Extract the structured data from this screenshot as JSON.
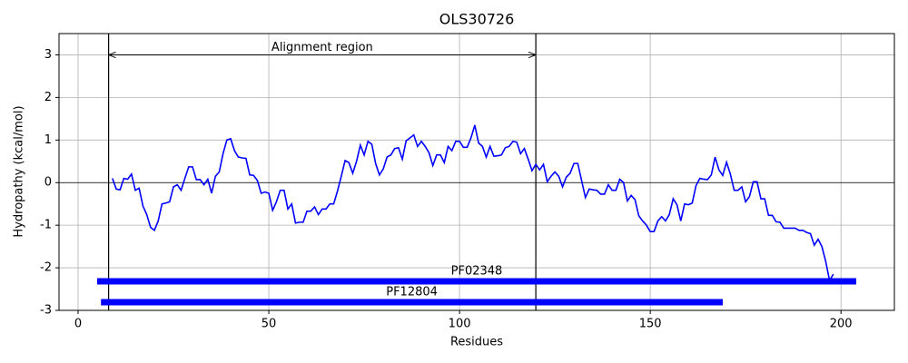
{
  "chart_data": {
    "type": "line",
    "title": "OLS30726",
    "xlabel": "Residues",
    "ylabel": "Hydropathy (kcal/mol)",
    "x": [
      9,
      10,
      11,
      12,
      13,
      14,
      15,
      16,
      17,
      18,
      19,
      20,
      21,
      22,
      23,
      24,
      25,
      26,
      27,
      28,
      29,
      30,
      31,
      32,
      33,
      34,
      35,
      36,
      37,
      38,
      39,
      40,
      41,
      42,
      43,
      44,
      45,
      46,
      47,
      48,
      49,
      50,
      51,
      52,
      53,
      54,
      55,
      56,
      57,
      58,
      59,
      60,
      61,
      62,
      63,
      64,
      65,
      66,
      67,
      68,
      69,
      70,
      71,
      72,
      73,
      74,
      75,
      76,
      77,
      78,
      79,
      80,
      81,
      82,
      83,
      84,
      85,
      86,
      87,
      88,
      89,
      90,
      91,
      92,
      93,
      94,
      95,
      96,
      97,
      98,
      99,
      100,
      101,
      102,
      103,
      104,
      105,
      106,
      107,
      108,
      109,
      110,
      111,
      112,
      113,
      114,
      115,
      116,
      117,
      118,
      119,
      120,
      121,
      122,
      123,
      124,
      125,
      126,
      127,
      128,
      129,
      130,
      131,
      132,
      133,
      134,
      135,
      136,
      137,
      138,
      139,
      140,
      141,
      142,
      143,
      144,
      145,
      146,
      147,
      148,
      149,
      150,
      151,
      152,
      153,
      154,
      155,
      156,
      157,
      158,
      159,
      160,
      161,
      162,
      163,
      164,
      165,
      166,
      167,
      168,
      169,
      170,
      171,
      172,
      173,
      174,
      175,
      176,
      177,
      178,
      179,
      180,
      181,
      182,
      183,
      184,
      185,
      186,
      187,
      188,
      189,
      190,
      191,
      192,
      193,
      194,
      195,
      196,
      197,
      198
    ],
    "series": [
      {
        "color": "#0000ff",
        "values": [
          0.1,
          -0.15,
          -0.17,
          0.1,
          0.08,
          0.2,
          -0.18,
          -0.13,
          -0.55,
          -0.75,
          -1.05,
          -1.12,
          -0.9,
          -0.5,
          -0.48,
          -0.45,
          -0.1,
          -0.05,
          -0.18,
          0.1,
          0.37,
          0.37,
          0.07,
          0.07,
          -0.05,
          0.08,
          -0.25,
          0.15,
          0.25,
          0.68,
          1.0,
          1.03,
          0.75,
          0.6,
          0.58,
          0.57,
          0.18,
          0.17,
          0.05,
          -0.25,
          -0.22,
          -0.25,
          -0.65,
          -0.45,
          -0.18,
          -0.18,
          -0.62,
          -0.5,
          -0.95,
          -0.93,
          -0.93,
          -0.67,
          -0.67,
          -0.57,
          -0.75,
          -0.62,
          -0.62,
          -0.5,
          -0.5,
          -0.2,
          0.15,
          0.52,
          0.47,
          0.22,
          0.5,
          0.88,
          0.65,
          0.97,
          0.9,
          0.45,
          0.18,
          0.32,
          0.6,
          0.65,
          0.8,
          0.82,
          0.55,
          0.98,
          1.05,
          1.12,
          0.85,
          0.97,
          0.85,
          0.7,
          0.4,
          0.65,
          0.65,
          0.47,
          0.85,
          0.75,
          0.97,
          0.97,
          0.83,
          0.83,
          1.05,
          1.35,
          0.93,
          0.85,
          0.6,
          0.85,
          0.62,
          0.63,
          0.65,
          0.82,
          0.85,
          0.97,
          0.95,
          0.68,
          0.8,
          0.55,
          0.28,
          0.43,
          0.3,
          0.43,
          0.02,
          0.15,
          0.25,
          0.15,
          -0.1,
          0.13,
          0.22,
          0.45,
          0.45,
          0.05,
          -0.35,
          -0.15,
          -0.17,
          -0.18,
          -0.27,
          -0.27,
          -0.05,
          -0.18,
          -0.18,
          0.08,
          0.0,
          -0.43,
          -0.3,
          -0.4,
          -0.78,
          -0.9,
          -1.0,
          -1.15,
          -1.15,
          -0.9,
          -0.8,
          -0.9,
          -0.75,
          -0.38,
          -0.52,
          -0.9,
          -0.5,
          -0.52,
          -0.48,
          -0.07,
          0.1,
          0.08,
          0.07,
          0.18,
          0.6,
          0.3,
          0.17,
          0.48,
          0.2,
          -0.18,
          -0.18,
          -0.1,
          -0.45,
          -0.33,
          0.02,
          0.02,
          -0.38,
          -0.38,
          -0.77,
          -0.77,
          -0.92,
          -0.93,
          -1.07,
          -1.07,
          -1.07,
          -1.07,
          -1.12,
          -1.12,
          -1.17,
          -1.2,
          -1.47,
          -1.33,
          -1.5,
          -1.85,
          -2.3,
          -2.15
        ]
      }
    ],
    "xlim": [
      -5,
      214
    ],
    "ylim": [
      -3,
      3.5
    ],
    "xticks": [
      0,
      50,
      100,
      150,
      200
    ],
    "yticks": [
      -3,
      -2,
      -1,
      0,
      1,
      2,
      3
    ],
    "grid": true,
    "hline": 0,
    "vlines": [
      8,
      120
    ],
    "annotation": {
      "text": "Alignment region",
      "from": 8,
      "to": 120,
      "y": 3
    },
    "domains": {
      "color": "#0000ff",
      "items": [
        {
          "name": "PF02348",
          "start": 5,
          "end": 204
        },
        {
          "name": "PF12804",
          "start": 6,
          "end": 169
        }
      ]
    }
  }
}
